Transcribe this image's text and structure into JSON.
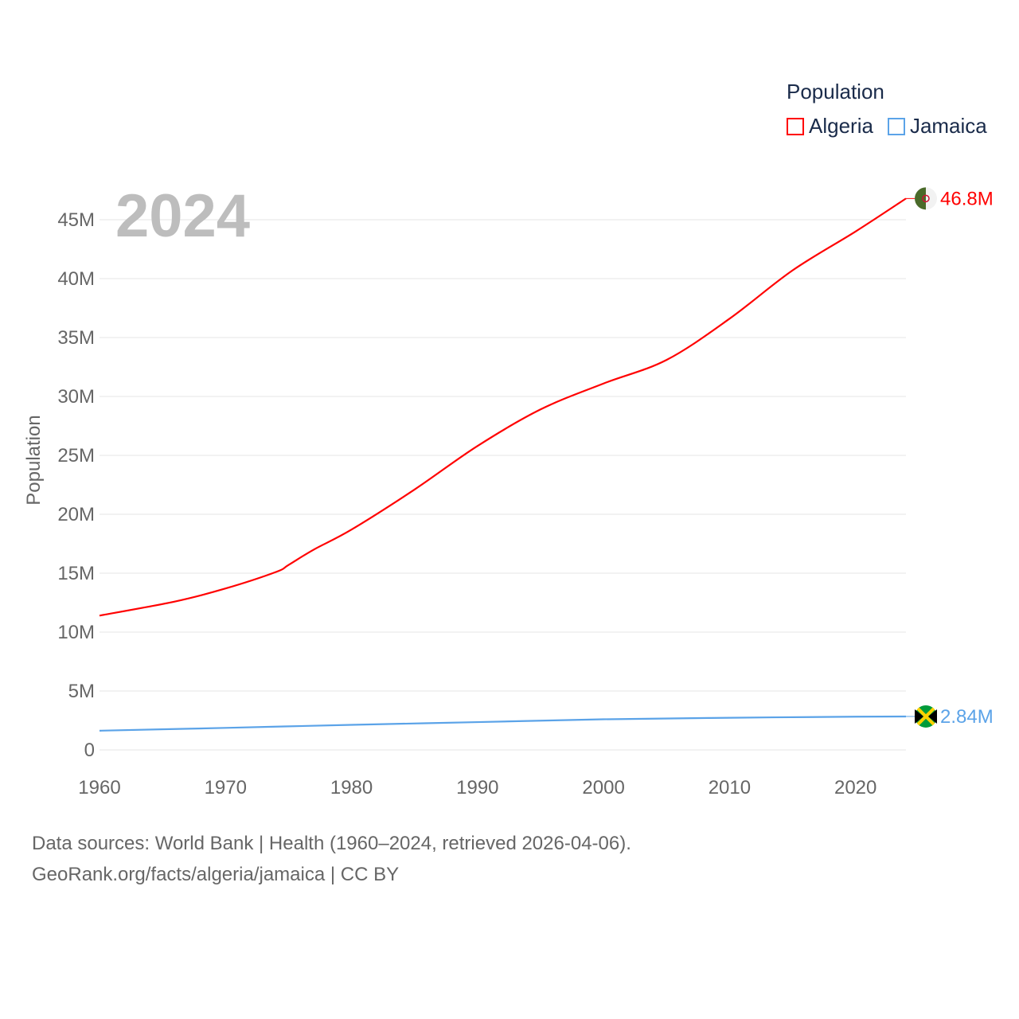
{
  "chart_data": {
    "type": "line",
    "title": "Population",
    "ylabel": "Population",
    "xlabel": "",
    "ylim": [
      0,
      47000000
    ],
    "xlim": [
      1960,
      2024
    ],
    "grid": true,
    "legend_placement": "top-right",
    "year_label": "2024",
    "yticks": [
      0,
      5000000,
      10000000,
      15000000,
      20000000,
      25000000,
      30000000,
      35000000,
      40000000,
      45000000
    ],
    "ytick_labels": [
      "0",
      "5M",
      "10M",
      "15M",
      "20M",
      "25M",
      "30M",
      "35M",
      "40M",
      "45M"
    ],
    "xticks": [
      1960,
      1970,
      1980,
      1990,
      2000,
      2010,
      2020
    ],
    "xtick_labels": [
      "1960",
      "1970",
      "1980",
      "1990",
      "2000",
      "2010",
      "2020"
    ],
    "series": [
      {
        "name": "Algeria",
        "color": "#ff0000",
        "end_label": "46.8M",
        "x": [
          1960,
          1966,
          1970,
          1974,
          1975,
          1977,
          1980,
          1985,
          1990,
          1995,
          2000,
          2005,
          2010,
          2015,
          2020,
          2024
        ],
        "values": [
          11400000,
          12600000,
          13700000,
          15100000,
          15700000,
          17000000,
          18700000,
          22100000,
          25800000,
          28900000,
          31100000,
          33100000,
          36600000,
          40700000,
          44000000,
          46800000
        ]
      },
      {
        "name": "Jamaica",
        "color": "#5ba3e8",
        "end_label": "2.84M",
        "x": [
          1960,
          1970,
          1980,
          1990,
          2000,
          2010,
          2020,
          2024
        ],
        "values": [
          1630000,
          1870000,
          2130000,
          2360000,
          2600000,
          2730000,
          2820000,
          2840000
        ]
      }
    ]
  },
  "source": {
    "line1": "Data sources: World Bank | Health (1960–2024, retrieved 2026-04-06).",
    "line2": "GeoRank.org/facts/algeria/jamaica | CC BY"
  }
}
